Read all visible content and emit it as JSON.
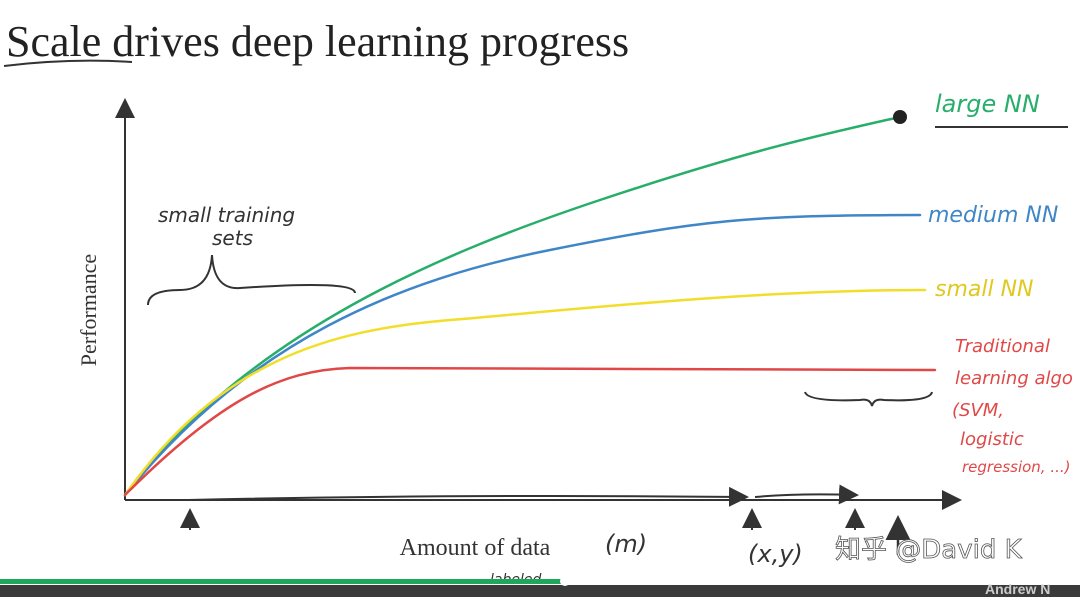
{
  "slide": {
    "title": "Scale drives deep learning progress",
    "y_axis_label": "Performance",
    "x_axis_label": "Amount of data",
    "x_axis_note": "(m)",
    "xy_note": "(x,y)",
    "labeled_note": "labeled",
    "small_sets_note": [
      "small training",
      "sets"
    ],
    "curves": [
      "large NN",
      "medium NN",
      "small NN"
    ],
    "traditional": [
      "Traditional",
      "learning algo",
      "(SVM,",
      "logistic",
      "regression, ...)"
    ]
  },
  "footer": {
    "watermark": "知乎 @David K",
    "author": "Andrew N"
  }
}
